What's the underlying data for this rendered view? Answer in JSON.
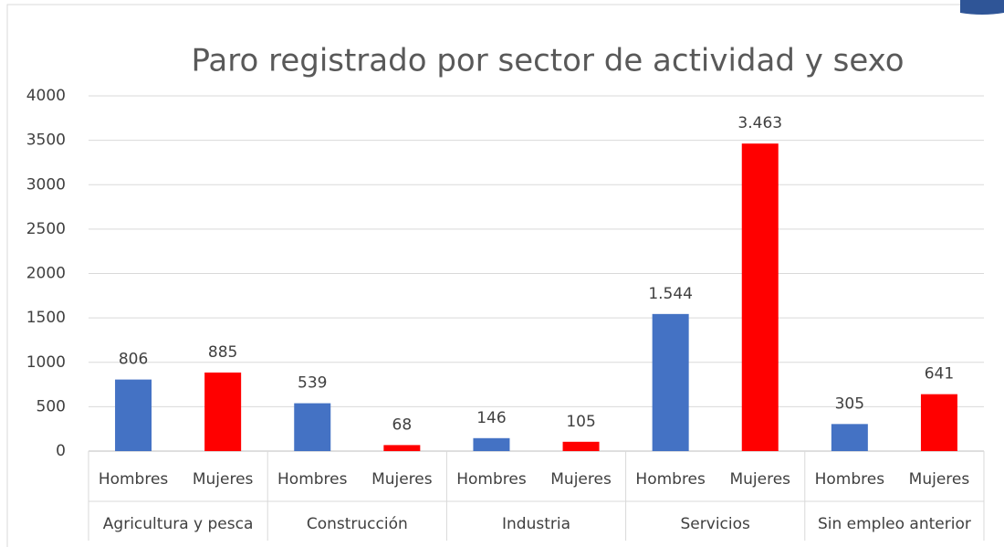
{
  "chart_data": {
    "type": "bar",
    "title": "Paro registrado por sector de actividad y sexo",
    "categories": [
      "Agricultura y pesca",
      "Construcción",
      "Industria",
      "Servicios",
      "Sin empleo anterior"
    ],
    "series": [
      {
        "name": "Hombres",
        "color": "#4472c4",
        "values": [
          806,
          539,
          146,
          1544,
          305
        ],
        "value_labels": [
          "806",
          "539",
          "146",
          "1.544",
          "305"
        ]
      },
      {
        "name": "Mujeres",
        "color": "#ff0000",
        "values": [
          885,
          68,
          105,
          3463,
          641
        ],
        "value_labels": [
          "885",
          "68",
          "105",
          "3.463",
          "641"
        ]
      }
    ],
    "ylim": [
      0,
      4000
    ],
    "yticks": [
      0,
      500,
      1000,
      1500,
      2000,
      2500,
      3000,
      3500,
      4000
    ],
    "grid": true
  }
}
